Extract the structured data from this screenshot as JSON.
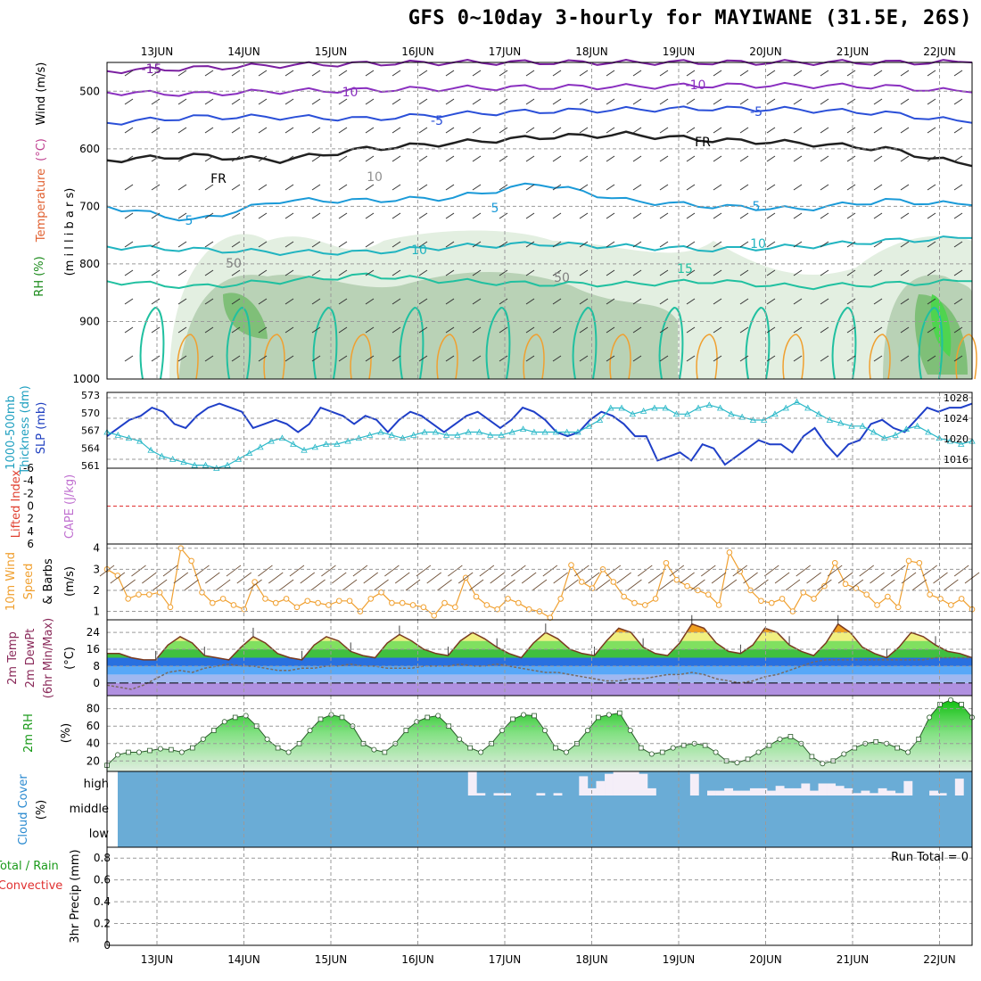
{
  "title": "GFS 0~10day 3-hourly for MAYIWANE (31.5E, 26S)",
  "colors": {
    "rh_fill_light": "#e3efe1",
    "rh_fill_mid": "#b9d2b6",
    "rh_fill_dark": "#7fbf78",
    "bright_green": "#4fd44f",
    "slp_line": "#1f3fc8",
    "thickness_line": "#2ab8c8",
    "wind_line": "#f0a030",
    "temp_line": "#7a3a20",
    "dewpt_line": "#7a6a60",
    "cloud_fill": "#6aacd6",
    "cloud_bar": "#f4eef8",
    "lifted_zero": "#e03030",
    "cape_label": "#c070d0"
  },
  "chart_data": [
    {
      "type": "contour",
      "panel": "upper-air",
      "xlabel_top": [
        "13JUN",
        "14JUN",
        "15JUN",
        "16JUN",
        "17JUN",
        "18JUN",
        "19JUN",
        "20JUN",
        "21JUN",
        "22JUN"
      ],
      "ylabel_parts": [
        "RH (%)",
        "Temperature",
        "(°C)",
        "Wind",
        "(m/s)",
        "(m i l l i b a r s)"
      ],
      "y_ticks": [
        "500",
        "600",
        "700",
        "800",
        "900",
        "1000"
      ],
      "ylim": [
        1000,
        450
      ],
      "contour_labels": [
        "-15",
        "-10",
        "-10",
        "-5",
        "-5",
        "FR",
        "FR",
        "5",
        "5",
        "5",
        "10",
        "10",
        "15",
        "50",
        "50",
        "10"
      ],
      "isotherms": [
        {
          "label": "-15",
          "p": [
            465,
            460,
            455,
            452,
            450,
            450,
            450,
            450,
            450,
            450,
            450
          ]
        },
        {
          "label": "-10",
          "p": [
            502,
            505,
            500,
            498,
            495,
            493,
            492,
            490,
            490,
            492,
            502
          ]
        },
        {
          "label": "-5",
          "p": [
            555,
            545,
            545,
            548,
            540,
            535,
            532,
            530,
            532,
            538,
            555
          ]
        },
        {
          "label": "FR",
          "p": [
            620,
            612,
            620,
            600,
            590,
            580,
            575,
            585,
            590,
            600,
            630
          ]
        },
        {
          "label": "5",
          "p": [
            700,
            725,
            690,
            690,
            685,
            660,
            690,
            700,
            705,
            690,
            698
          ]
        },
        {
          "label": "10",
          "p": [
            770,
            775,
            780,
            780,
            770,
            765,
            770,
            775,
            770,
            760,
            755
          ]
        },
        {
          "label": "15",
          "p": [
            830,
            840,
            830,
            820,
            830,
            835,
            835,
            830,
            840,
            835,
            830
          ]
        }
      ]
    },
    {
      "type": "line",
      "panel": "thickness-slp",
      "ylabel_parts": [
        "1000-500mb",
        "Thickness (dm)",
        "SLP (mb)"
      ],
      "left_ticks": [
        "573",
        "570",
        "567",
        "564",
        "561"
      ],
      "right_ticks": [
        "1028",
        "1024",
        "1020",
        "1016"
      ],
      "series": [
        {
          "name": "SLP (mb)",
          "ylim": [
            1013,
            1029
          ],
          "values": [
            1020,
            1022,
            1024,
            1025,
            1027,
            1026,
            1023,
            1022,
            1025,
            1027,
            1028,
            1027,
            1026,
            1022,
            1023,
            1024,
            1023,
            1021,
            1023,
            1027,
            1026,
            1025,
            1023,
            1025,
            1024,
            1021,
            1024,
            1026,
            1025,
            1023,
            1021,
            1023,
            1025,
            1026,
            1024,
            1022,
            1024,
            1027,
            1026,
            1024,
            1021,
            1020,
            1021,
            1024,
            1026,
            1025,
            1023,
            1020,
            1020,
            1014,
            1015,
            1016,
            1014,
            1018,
            1017,
            1013,
            1015,
            1017,
            1019,
            1018,
            1018,
            1016,
            1020,
            1022,
            1018,
            1015,
            1018,
            1019,
            1023,
            1024,
            1022,
            1021,
            1024,
            1027,
            1026,
            1027,
            1027,
            1028
          ]
        },
        {
          "name": "1000-500mb Thickness (dm)",
          "ylim": [
            561,
            573
          ],
          "values": [
            567,
            566.5,
            566,
            565.5,
            564,
            563,
            562.5,
            562,
            561.5,
            561.5,
            561,
            561.5,
            562.5,
            563.5,
            564.5,
            565.5,
            566,
            565,
            564,
            564.5,
            565,
            565,
            565.5,
            566,
            566.5,
            567,
            566.5,
            566,
            566.5,
            567,
            567,
            566.5,
            566.5,
            567,
            567,
            566.5,
            566.5,
            567,
            567.5,
            567,
            567,
            567,
            567,
            567,
            568,
            569,
            571,
            571,
            570,
            570.5,
            571,
            571,
            570,
            570,
            571,
            571.5,
            571,
            570,
            569.5,
            569,
            569,
            570,
            571,
            572,
            571,
            570,
            569,
            568.5,
            568,
            568,
            567,
            566,
            566.5,
            567.5,
            568,
            567,
            566,
            565.5,
            565,
            565.5
          ]
        }
      ]
    },
    {
      "type": "line",
      "panel": "lifted-cape",
      "ylabel_parts": [
        "Lifted Index",
        "CAPE (J/kg)"
      ],
      "y_ticks": [
        "-6",
        "-4",
        "-2",
        "0",
        "2",
        "4",
        "6"
      ],
      "ylim": [
        6,
        -6
      ],
      "series": [
        {
          "name": "Lifted Index",
          "values": []
        }
      ]
    },
    {
      "type": "line",
      "panel": "wind10m",
      "ylabel_parts": [
        "10m Wind",
        "Speed",
        "(m/s)",
        "& Barbs"
      ],
      "y_ticks": [
        "4",
        "3",
        "2",
        "1"
      ],
      "ylim": [
        0.6,
        4.2
      ],
      "series": [
        {
          "name": "10m Wind Speed (m/s)",
          "values": [
            3,
            2.7,
            1.6,
            1.8,
            1.8,
            1.9,
            1.2,
            4,
            3.4,
            1.9,
            1.4,
            1.6,
            1.3,
            1.1,
            2.4,
            1.6,
            1.4,
            1.6,
            1.2,
            1.5,
            1.4,
            1.3,
            1.5,
            1.5,
            1.0,
            1.6,
            1.9,
            1.4,
            1.4,
            1.3,
            1.2,
            0.8,
            1.4,
            1.2,
            2.6,
            1.7,
            1.3,
            1.1,
            1.6,
            1.4,
            1.1,
            1.0,
            0.7,
            1.6,
            3.2,
            2.4,
            2.1,
            3.0,
            2.4,
            1.7,
            1.4,
            1.3,
            1.6,
            3.3,
            2.5,
            2.2,
            2.0,
            1.8,
            1.3,
            3.8,
            2.9,
            2.0,
            1.5,
            1.4,
            1.6,
            1.0,
            1.9,
            1.6,
            2.2,
            3.3,
            2.3,
            2.1,
            1.8,
            1.3,
            1.7,
            1.2,
            3.4,
            3.3,
            1.8,
            1.6,
            1.3,
            1.6,
            1.1
          ]
        }
      ]
    },
    {
      "type": "area",
      "panel": "temperature",
      "ylabel_parts": [
        "2m Temp",
        "2m DewPt",
        "(6hr Min/Max)"
      ],
      "unit": "(°C)",
      "y_ticks": [
        "24",
        "16",
        "8",
        "0"
      ],
      "ylim": [
        -6,
        30
      ],
      "series": [
        {
          "name": "2m Temp",
          "values": [
            14,
            14,
            12,
            11,
            11,
            18,
            22,
            19,
            13,
            12,
            11,
            17,
            22,
            19,
            14,
            12,
            11,
            18,
            22,
            20,
            15,
            13,
            12,
            19,
            23,
            20,
            16,
            14,
            13,
            20,
            24,
            21,
            17,
            14,
            12,
            19,
            24,
            21,
            16,
            14,
            13,
            20,
            26,
            24,
            17,
            14,
            13,
            19,
            28,
            26,
            19,
            15,
            14,
            18,
            26,
            24,
            18,
            15,
            13,
            19,
            28,
            24,
            17,
            14,
            12,
            17,
            24,
            22,
            18,
            15,
            14,
            12
          ]
        },
        {
          "name": "2m DewPt",
          "values": [
            -1,
            -2,
            -3,
            -1,
            2,
            5,
            6,
            5,
            7,
            8,
            9,
            8,
            8,
            7,
            6,
            6,
            7,
            7,
            8,
            8,
            9,
            8,
            8,
            7,
            7,
            7,
            8,
            8,
            8,
            9,
            8,
            8,
            9,
            8,
            7,
            6,
            5,
            5,
            4,
            3,
            2,
            1,
            1,
            2,
            2,
            3,
            4,
            4,
            5,
            4,
            2,
            1,
            0,
            1,
            3,
            4,
            6,
            8,
            10,
            11,
            11,
            11,
            11,
            11,
            11,
            11,
            11,
            11,
            12,
            12,
            12,
            12
          ]
        }
      ]
    },
    {
      "type": "area",
      "panel": "rh2m",
      "ylabel_parts": [
        "2m RH"
      ],
      "unit": "(%)",
      "y_ticks": [
        "80",
        "60",
        "40",
        "20"
      ],
      "ylim": [
        8,
        95
      ],
      "series": [
        {
          "name": "2m RH",
          "values": [
            15,
            27,
            30,
            30,
            32,
            34,
            33,
            30,
            35,
            45,
            55,
            65,
            70,
            72,
            60,
            45,
            35,
            30,
            40,
            55,
            68,
            73,
            70,
            60,
            40,
            33,
            30,
            40,
            55,
            65,
            70,
            72,
            60,
            45,
            35,
            30,
            40,
            55,
            68,
            73,
            72,
            55,
            35,
            30,
            40,
            55,
            70,
            73,
            75,
            55,
            35,
            28,
            30,
            35,
            38,
            40,
            38,
            30,
            20,
            18,
            22,
            30,
            38,
            45,
            48,
            40,
            25,
            17,
            20,
            28,
            35,
            40,
            42,
            40,
            35,
            30,
            45,
            70,
            85,
            90,
            85,
            70
          ]
        }
      ]
    },
    {
      "type": "bar",
      "panel": "cloud",
      "ylabel_parts": [
        "Cloud Cover",
        "(%)"
      ],
      "y_ticks": [
        "high",
        "middle",
        "low"
      ],
      "series": [
        {
          "name": "High cloud",
          "values": [
            0,
            0,
            0,
            0,
            0,
            0,
            0,
            0,
            0,
            0,
            0,
            0,
            0,
            0,
            0,
            0,
            0,
            0,
            0,
            0,
            0,
            0,
            0,
            0,
            0,
            0,
            0,
            0,
            0,
            0,
            0,
            0,
            0,
            0,
            0,
            0,
            0,
            0,
            0,
            0,
            0,
            1,
            0.1,
            0,
            0.1,
            0.1,
            0,
            0,
            0,
            0.1,
            0,
            0.1,
            0,
            0,
            0.8,
            0.3,
            0.6,
            0.9,
            1,
            1,
            1,
            0.9,
            0.3,
            0,
            0,
            0,
            0,
            0.9,
            0,
            0.2,
            0.2,
            0.3,
            0.2,
            0.2,
            0.3,
            0.3,
            0.2,
            0.4,
            0.3,
            0.3,
            0.5,
            0.2,
            0.5,
            0.5,
            0.4,
            0.3,
            0.1,
            0.2,
            0.1,
            0.3,
            0.2,
            0.1,
            0.6,
            0,
            0,
            0.2,
            0.1,
            0,
            0.7,
            0
          ]
        }
      ]
    },
    {
      "type": "bar",
      "panel": "precip",
      "ylabel_parts": [
        "Total / Rain",
        "Convective",
        "3hr Precip (mm)"
      ],
      "y_ticks": [
        "0.8",
        "0.6",
        "0.4",
        "0.2",
        "0"
      ],
      "ylim": [
        0,
        0.9
      ],
      "run_total": "Run Total = 0",
      "xlabel_bottom": [
        "13JUN",
        "14JUN",
        "15JUN",
        "16JUN",
        "17JUN",
        "18JUN",
        "19JUN",
        "20JUN",
        "21JUN",
        "22JUN"
      ],
      "series": [
        {
          "name": "3hr Precip",
          "values": []
        }
      ]
    }
  ]
}
